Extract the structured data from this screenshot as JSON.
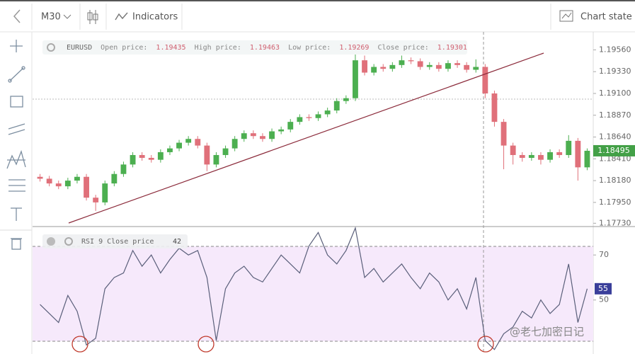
{
  "toolbar": {
    "timeframe": "M30",
    "indicators": "Indicators",
    "chart_state": "Chart state"
  },
  "watermark": "@老七加密日记",
  "chart_data": [
    {
      "type": "candlestick",
      "legend": {
        "symbol": "EURUSD",
        "open_label": "Open price:",
        "open": "1.19435",
        "high_label": "High price:",
        "high": "1.19463",
        "low_label": "Low price:",
        "low": "1.19269",
        "close_label": "Close price:",
        "close": "1.19301"
      },
      "open": [
        1.1822,
        1.182,
        1.1815,
        1.1812,
        1.1818,
        1.1822,
        1.18,
        1.1795,
        1.1815,
        1.1825,
        1.1835,
        1.1845,
        1.1842,
        1.184,
        1.1848,
        1.1852,
        1.1858,
        1.1862,
        1.1855,
        1.1835,
        1.1845,
        1.1852,
        1.1862,
        1.1868,
        1.1865,
        1.1862,
        1.187,
        1.1872,
        1.188,
        1.1885,
        1.1884,
        1.1888,
        1.1892,
        1.1902,
        1.1905,
        1.1945,
        1.1932,
        1.1938,
        1.1936,
        1.194,
        1.1945,
        1.1944,
        1.1938,
        1.194,
        1.1936,
        1.1942,
        1.194,
        1.1935,
        1.1938,
        1.191,
        1.188,
        1.1855,
        1.1845,
        1.1842,
        1.1845,
        1.184,
        1.1848,
        1.1845,
        1.186,
        1.1832
      ],
      "high": [
        1.1825,
        1.1823,
        1.1818,
        1.1821,
        1.1825,
        1.1825,
        1.1803,
        1.1818,
        1.1828,
        1.1838,
        1.1848,
        1.1848,
        1.1845,
        1.1851,
        1.1855,
        1.1861,
        1.1865,
        1.1865,
        1.1858,
        1.1848,
        1.1855,
        1.1865,
        1.1871,
        1.1871,
        1.1868,
        1.1873,
        1.1875,
        1.1883,
        1.1888,
        1.1888,
        1.1891,
        1.1895,
        1.1905,
        1.1908,
        1.1958,
        1.195,
        1.1941,
        1.1941,
        1.1943,
        1.195,
        1.1948,
        1.1947,
        1.1943,
        1.1943,
        1.1945,
        1.1945,
        1.1943,
        1.1946,
        1.1941,
        1.1913,
        1.1883,
        1.1858,
        1.1848,
        1.1848,
        1.1848,
        1.1851,
        1.1851,
        1.1866,
        1.1863,
        1.1852
      ],
      "low": [
        1.1817,
        1.1812,
        1.1809,
        1.1809,
        1.1815,
        1.1797,
        1.1786,
        1.1792,
        1.1812,
        1.1822,
        1.1832,
        1.1839,
        1.1837,
        1.1837,
        1.1845,
        1.1849,
        1.1855,
        1.1852,
        1.1828,
        1.1832,
        1.1842,
        1.1849,
        1.1859,
        1.1862,
        1.1859,
        1.1859,
        1.1867,
        1.1869,
        1.1877,
        1.1881,
        1.1881,
        1.1885,
        1.1889,
        1.1899,
        1.1902,
        1.1929,
        1.1929,
        1.1933,
        1.1933,
        1.1937,
        1.1941,
        1.1935,
        1.1935,
        1.1933,
        1.1933,
        1.1937,
        1.1932,
        1.1932,
        1.1905,
        1.1875,
        1.183,
        1.1835,
        1.1838,
        1.1839,
        1.1835,
        1.1837,
        1.1842,
        1.1842,
        1.1818,
        1.1829
      ],
      "close": [
        1.182,
        1.1815,
        1.1812,
        1.1818,
        1.1822,
        1.18,
        1.1795,
        1.1815,
        1.1825,
        1.1835,
        1.1845,
        1.1842,
        1.184,
        1.1848,
        1.1852,
        1.1858,
        1.1862,
        1.1855,
        1.1835,
        1.1845,
        1.1852,
        1.1862,
        1.1868,
        1.1865,
        1.1862,
        1.187,
        1.1872,
        1.188,
        1.1885,
        1.1884,
        1.1888,
        1.1892,
        1.1902,
        1.1905,
        1.1945,
        1.1932,
        1.1938,
        1.1936,
        1.194,
        1.1945,
        1.1944,
        1.1938,
        1.194,
        1.1936,
        1.1942,
        1.194,
        1.1935,
        1.1938,
        1.191,
        1.188,
        1.1855,
        1.1845,
        1.1842,
        1.1845,
        1.184,
        1.1848,
        1.1845,
        1.186,
        1.1832,
        1.18495
      ],
      "up_color": "#4caf50",
      "down_color": "#e0707a",
      "current_price": {
        "value": 1.18495,
        "label": "1.18495"
      },
      "ylim": [
        1.1771,
        1.1975
      ],
      "yticks": [
        {
          "value": 1.1773,
          "label": "1.17730"
        },
        {
          "value": 1.1795,
          "label": "1.17950"
        },
        {
          "value": 1.1818,
          "label": "1.18180"
        },
        {
          "value": 1.1841,
          "label": "1.18410"
        },
        {
          "value": 1.1864,
          "label": "1.18640"
        },
        {
          "value": 1.1887,
          "label": "1.18870"
        },
        {
          "value": 1.191,
          "label": "1.19100"
        },
        {
          "value": 1.1933,
          "label": "1.19330"
        },
        {
          "value": 1.1956,
          "label": "1.19560"
        }
      ]
    },
    {
      "type": "line",
      "title": "RSI 9 Close price",
      "readout": "42",
      "series": [
        {
          "name": "RSI",
          "color": "#5a5f7a",
          "values": [
            48,
            44,
            40,
            52,
            45,
            30,
            33,
            55,
            60,
            62,
            72,
            65,
            70,
            62,
            68,
            73,
            70,
            72,
            60,
            32,
            55,
            62,
            65,
            60,
            58,
            64,
            70,
            66,
            62,
            74,
            80,
            70,
            66,
            72,
            82,
            60,
            64,
            58,
            62,
            66,
            60,
            55,
            62,
            58,
            50,
            55,
            46,
            60,
            32,
            28,
            35,
            38,
            45,
            42,
            50,
            44,
            48,
            66,
            40,
            55
          ]
        }
      ],
      "ylim": [
        26,
        82
      ],
      "yticks": [
        70,
        50
      ]
    }
  ]
}
